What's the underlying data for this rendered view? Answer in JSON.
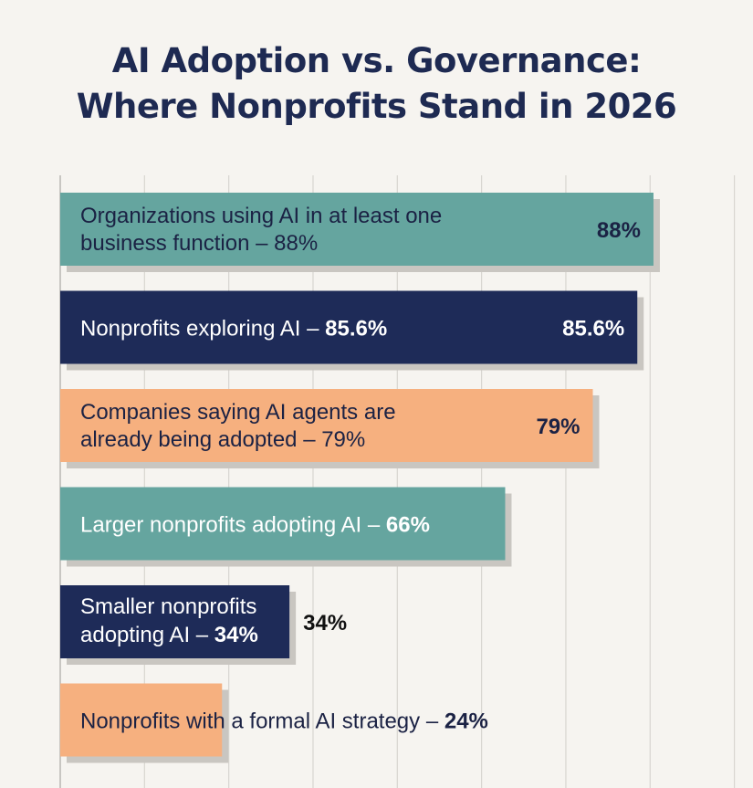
{
  "chart_data": {
    "type": "bar",
    "orientation": "horizontal",
    "title_lines": [
      "AI Adoption vs. Governance:",
      "Where Nonprofits Stand in 2026"
    ],
    "xlim": [
      0,
      100
    ],
    "grid": true,
    "bars": [
      {
        "label_lines": [
          "Organizations using AI in at least one",
          "business function – 88%"
        ],
        "value": 88,
        "value_label": "88%",
        "color": "#65a59f",
        "text_color": "#1b2244"
      },
      {
        "label_lines": [
          "Nonprofits exploring AI – ",
          "85.6%"
        ],
        "value": 85.6,
        "value_label": "85.6%",
        "color": "#1e2b58",
        "text_color": "#ffffff",
        "inline_bold": true
      },
      {
        "label_lines": [
          "Companies saying AI agents are",
          "already being adopted – 79%"
        ],
        "value": 79,
        "value_label": "79%",
        "color": "#f6b07f",
        "text_color": "#1b2244"
      },
      {
        "label_lines": [
          "Larger nonprofits adopting AI – ",
          "66%"
        ],
        "value": 66,
        "value_label": "",
        "color": "#65a59f",
        "text_color": "#ffffff",
        "inline_bold": true
      },
      {
        "label_lines": [
          "Smaller nonprofits",
          "adopting AI – ",
          "34%"
        ],
        "value": 34,
        "value_label": "34%",
        "color": "#1e2b58",
        "text_color": "#ffffff",
        "two_line_bold": true
      },
      {
        "label_lines": [
          "Nonprofits with a formal AI strategy – ",
          "24%"
        ],
        "value": 24,
        "value_label": "",
        "color": "#f6b07f",
        "text_color": "#1b2244",
        "inline_bold": true
      }
    ]
  }
}
